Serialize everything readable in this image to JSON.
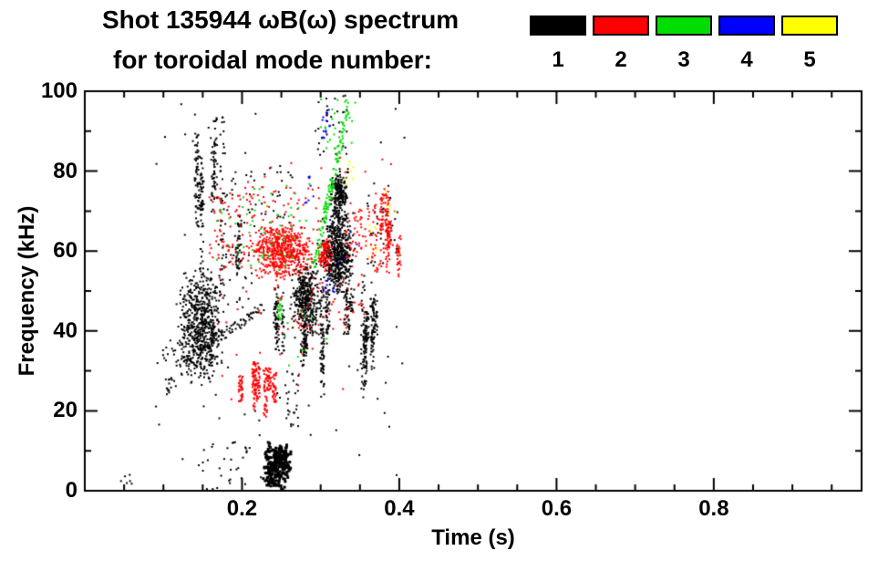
{
  "chart_data": {
    "type": "scatter",
    "title": "Shot 135944 ωB(ω) spectrum",
    "subtitle": "for toroidal mode number:",
    "xlabel": "Time (s)",
    "ylabel": "Frequency (kHz)",
    "xlim": [
      0,
      0.988
    ],
    "ylim": [
      0,
      100
    ],
    "xticks": [
      {
        "v": 0.2,
        "label": "0.2"
      },
      {
        "v": 0.4,
        "label": "0.4"
      },
      {
        "v": 0.6,
        "label": "0.6"
      },
      {
        "v": 0.8,
        "label": "0.8"
      }
    ],
    "yticks": [
      {
        "v": 0,
        "label": "0"
      },
      {
        "v": 20,
        "label": "20"
      },
      {
        "v": 40,
        "label": "40"
      },
      {
        "v": 60,
        "label": "60"
      },
      {
        "v": 80,
        "label": "80"
      },
      {
        "v": 100,
        "label": "100"
      }
    ],
    "xminor_step": 0.05,
    "yminor_step": 10,
    "grid": false,
    "legend": {
      "position": "top-right",
      "items": [
        {
          "label": "1",
          "color": "#000000"
        },
        {
          "label": "2",
          "color": "#ff0000"
        },
        {
          "label": "3",
          "color": "#00dd00"
        },
        {
          "label": "4",
          "color": "#0000ff"
        },
        {
          "label": "5",
          "color": "#ffff00"
        }
      ]
    },
    "clusters": [
      {
        "mode": 1,
        "type": "streaks",
        "t": [
          0.138,
          0.176
        ],
        "f": [
          52,
          95
        ],
        "n": 220,
        "k": 7
      },
      {
        "mode": 1,
        "type": "blob",
        "t": [
          0.116,
          0.178
        ],
        "f": [
          26,
          56
        ],
        "n": 650
      },
      {
        "mode": 1,
        "type": "specks",
        "t": [
          0.098,
          0.118
        ],
        "f": [
          24,
          36
        ],
        "n": 25
      },
      {
        "mode": 1,
        "type": "line",
        "t": [
          0.124,
          0.228
        ],
        "f": [
          32,
          46
        ],
        "n": 90,
        "jt": 0.005,
        "jf": 2.5
      },
      {
        "mode": 1,
        "type": "streaks",
        "t": [
          0.188,
          0.197
        ],
        "f": [
          44,
          74
        ],
        "n": 50,
        "k": 2
      },
      {
        "mode": 1,
        "type": "specks",
        "t": [
          0.168,
          0.215
        ],
        "f": [
          46,
          80
        ],
        "n": 50
      },
      {
        "mode": 1,
        "type": "specks",
        "t": [
          0.215,
          0.265
        ],
        "f": [
          66,
          82
        ],
        "n": 25
      },
      {
        "mode": 1,
        "type": "streaks",
        "t": [
          0.238,
          0.254
        ],
        "f": [
          33,
          52
        ],
        "n": 90,
        "k": 4
      },
      {
        "mode": 1,
        "type": "blob",
        "t": [
          0.262,
          0.302
        ],
        "f": [
          38,
          58
        ],
        "n": 380
      },
      {
        "mode": 1,
        "type": "streaks",
        "t": [
          0.272,
          0.305
        ],
        "f": [
          22,
          48
        ],
        "n": 130,
        "k": 5
      },
      {
        "mode": 1,
        "type": "blob",
        "t": [
          0.3,
          0.344
        ],
        "f": [
          48,
          70
        ],
        "n": 560
      },
      {
        "mode": 1,
        "type": "blob",
        "t": [
          0.312,
          0.336
        ],
        "f": [
          66,
          81
        ],
        "n": 230
      },
      {
        "mode": 1,
        "type": "streaks",
        "t": [
          0.3,
          0.34
        ],
        "f": [
          38,
          52
        ],
        "n": 130,
        "k": 6
      },
      {
        "mode": 1,
        "type": "streaks",
        "t": [
          0.348,
          0.38
        ],
        "f": [
          22,
          54
        ],
        "n": 230,
        "k": 7
      },
      {
        "mode": 1,
        "type": "blob",
        "t": [
          0.225,
          0.265
        ],
        "f": [
          0,
          13
        ],
        "n": 260,
        "s": 3
      },
      {
        "mode": 1,
        "type": "specks",
        "t": [
          0.14,
          0.21
        ],
        "f": [
          0,
          12
        ],
        "n": 30
      },
      {
        "mode": 1,
        "type": "specks",
        "t": [
          0.292,
          0.335
        ],
        "f": [
          84,
          99
        ],
        "n": 30
      },
      {
        "mode": 1,
        "type": "specks",
        "t": [
          0.09,
          0.41
        ],
        "f": [
          3,
          99
        ],
        "n": 80
      },
      {
        "mode": 1,
        "type": "specks",
        "t": [
          0.042,
          0.06
        ],
        "f": [
          1,
          4
        ],
        "n": 6
      },
      {
        "mode": 1,
        "type": "specks",
        "t": [
          0.255,
          0.272
        ],
        "f": [
          16,
          30
        ],
        "n": 25
      },
      {
        "mode": 1,
        "type": "specks",
        "t": [
          0.36,
          0.4
        ],
        "f": [
          56,
          74
        ],
        "n": 35
      },
      {
        "mode": 2,
        "type": "blob",
        "t": [
          0.208,
          0.294
        ],
        "f": [
          53,
          67
        ],
        "n": 560
      },
      {
        "mode": 2,
        "type": "specks",
        "t": [
          0.158,
          0.212
        ],
        "f": [
          55,
          76
        ],
        "n": 70
      },
      {
        "mode": 2,
        "type": "streaks",
        "t": [
          0.192,
          0.246
        ],
        "f": [
          16,
          37
        ],
        "n": 230,
        "k": 7
      },
      {
        "mode": 2,
        "type": "blob",
        "t": [
          0.296,
          0.316
        ],
        "f": [
          54,
          64
        ],
        "n": 90
      },
      {
        "mode": 2,
        "type": "streaks",
        "t": [
          0.378,
          0.402
        ],
        "f": [
          53,
          78
        ],
        "n": 150,
        "k": 5
      },
      {
        "mode": 2,
        "type": "specks",
        "t": [
          0.36,
          0.38
        ],
        "f": [
          55,
          72
        ],
        "n": 40
      },
      {
        "mode": 2,
        "type": "specks",
        "t": [
          0.24,
          0.36
        ],
        "f": [
          40,
          54
        ],
        "n": 55
      },
      {
        "mode": 2,
        "type": "specks",
        "t": [
          0.21,
          0.3
        ],
        "f": [
          67,
          76
        ],
        "n": 40
      },
      {
        "mode": 2,
        "type": "specks",
        "t": [
          0.15,
          0.4
        ],
        "f": [
          22,
          84
        ],
        "n": 60
      },
      {
        "mode": 2,
        "type": "specks",
        "t": [
          0.33,
          0.36
        ],
        "f": [
          58,
          72
        ],
        "n": 45
      },
      {
        "mode": 3,
        "type": "line",
        "t": [
          0.292,
          0.334
        ],
        "f": [
          56,
          95
        ],
        "n": 140,
        "jt": 0.006,
        "jf": 3
      },
      {
        "mode": 3,
        "type": "specks",
        "t": [
          0.2,
          0.29
        ],
        "f": [
          55,
          78
        ],
        "n": 50
      },
      {
        "mode": 3,
        "type": "blob",
        "t": [
          0.243,
          0.253
        ],
        "f": [
          42,
          48
        ],
        "n": 20
      },
      {
        "mode": 3,
        "type": "specks",
        "t": [
          0.3,
          0.345
        ],
        "f": [
          85,
          98
        ],
        "n": 25
      },
      {
        "mode": 3,
        "type": "specks",
        "t": [
          0.16,
          0.2
        ],
        "f": [
          55,
          72
        ],
        "n": 10
      },
      {
        "mode": 3,
        "type": "specks",
        "t": [
          0.25,
          0.31
        ],
        "f": [
          30,
          46
        ],
        "n": 10
      },
      {
        "mode": 4,
        "type": "specks",
        "t": [
          0.3,
          0.312
        ],
        "f": [
          88,
          97
        ],
        "n": 15
      },
      {
        "mode": 4,
        "type": "specks",
        "t": [
          0.278,
          0.292
        ],
        "f": [
          72,
          80
        ],
        "n": 8
      },
      {
        "mode": 4,
        "type": "specks",
        "t": [
          0.303,
          0.318
        ],
        "f": [
          47,
          53
        ],
        "n": 8
      },
      {
        "mode": 4,
        "type": "specks",
        "t": [
          0.31,
          0.35
        ],
        "f": [
          55,
          70
        ],
        "n": 5
      },
      {
        "mode": 5,
        "type": "specks",
        "t": [
          0.328,
          0.342
        ],
        "f": [
          76,
          83
        ],
        "n": 8
      },
      {
        "mode": 5,
        "type": "specks",
        "t": [
          0.358,
          0.372
        ],
        "f": [
          58,
          67
        ],
        "n": 8
      },
      {
        "mode": 5,
        "type": "specks",
        "t": [
          0.383,
          0.396
        ],
        "f": [
          68,
          75
        ],
        "n": 5
      }
    ]
  }
}
